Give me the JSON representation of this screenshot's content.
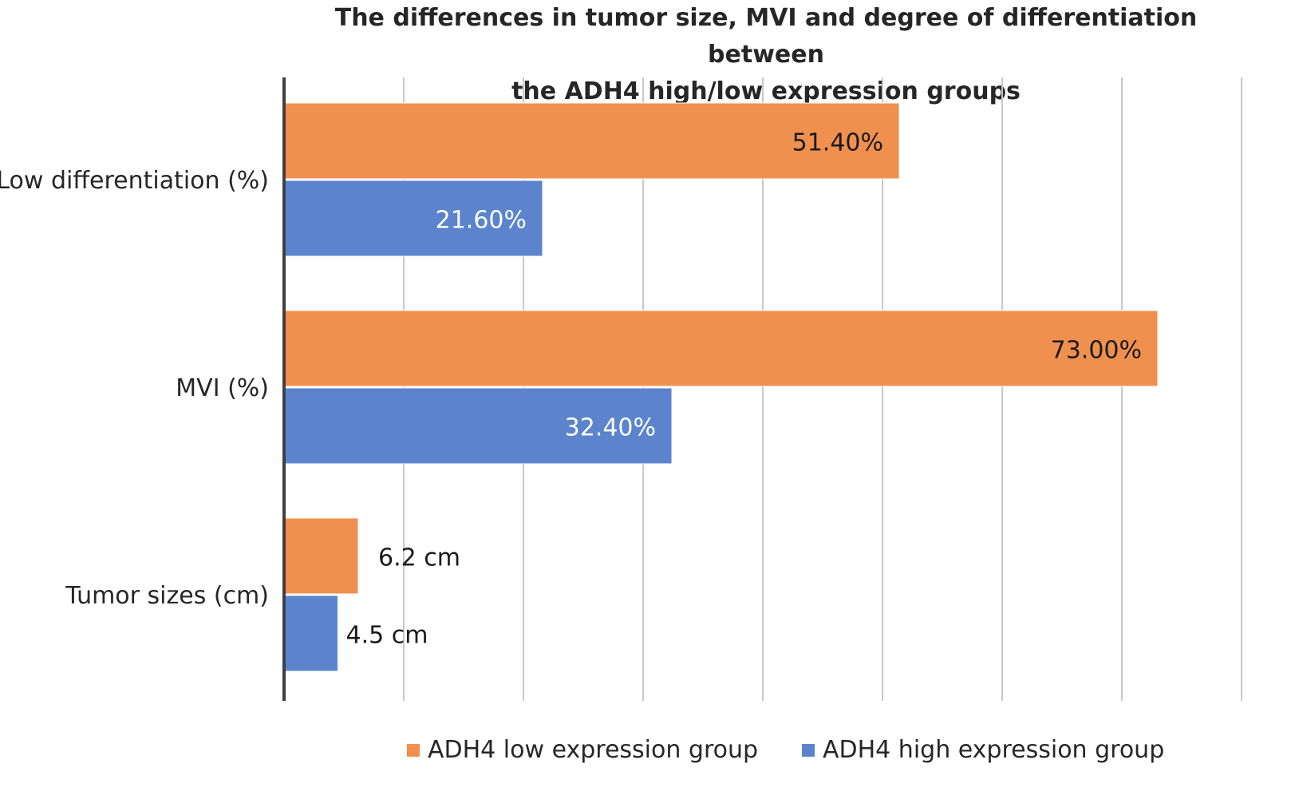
{
  "chart_data": {
    "type": "bar",
    "orientation": "horizontal",
    "title_lines": [
      "The differences in tumor size, MVI and degree of differentiation between",
      "the ADH4 high/low expression groups"
    ],
    "categories": [
      "Low differentiation (%)",
      "MVI (%)",
      "Tumor sizes (cm)"
    ],
    "series": [
      {
        "name": "ADH4 low expression group",
        "color": "#F0904F",
        "values": [
          51.4,
          73.0,
          6.2
        ],
        "labels": [
          "51.40%",
          "73.00%",
          "6.2 cm"
        ]
      },
      {
        "name": "ADH4 high expression group",
        "color": "#5B84CC",
        "values": [
          21.6,
          32.4,
          4.5
        ],
        "labels": [
          "21.60%",
          "32.40%",
          "4.5 cm"
        ]
      }
    ],
    "xlim": [
      0,
      80
    ],
    "grid": true,
    "legend_position": "bottom"
  }
}
